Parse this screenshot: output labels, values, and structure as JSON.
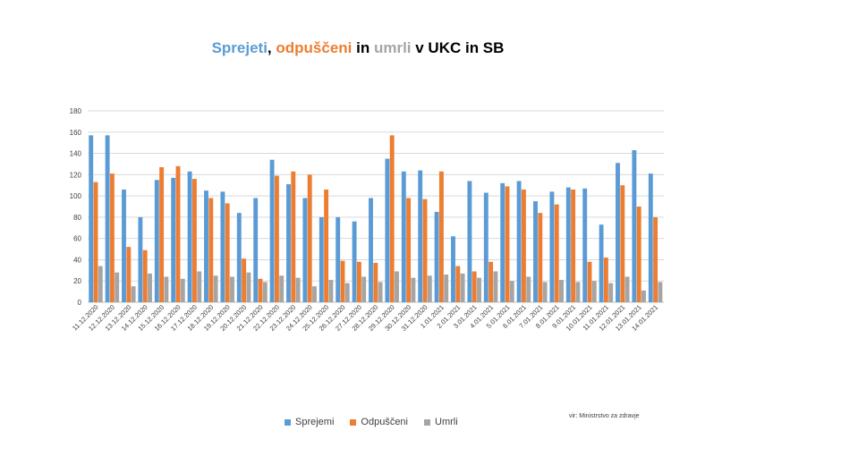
{
  "title": {
    "part1": "Sprejeti",
    "sep1": ", ",
    "part2": "odpuščeni",
    "sep2": " in ",
    "part3": "umrli",
    "part4": " v UKC in SB"
  },
  "colors": {
    "Sprejemi": "#5b9bd5",
    "Odpuščeni": "#ed7d31",
    "Umrli": "#a5a5a5",
    "title_dark": "#000000",
    "grid": "#d9d9d9",
    "axis_text": "#404040"
  },
  "source": "vir: Ministrstvo za zdravje",
  "legend": {
    "s1": "Sprejemi",
    "s2": "Odpuščeni",
    "s3": "Umrli"
  },
  "chart_data": {
    "type": "bar",
    "title": "Sprejeti, odpuščeni in umrli v UKC in SB",
    "ylim": [
      0,
      180
    ],
    "yticks": [
      0,
      20,
      40,
      60,
      80,
      100,
      120,
      140,
      160,
      180
    ],
    "grid": true,
    "legend_position": "bottom",
    "categories": [
      "11.12.2020",
      "12.12.2020",
      "13.12.2020",
      "14.12.2020",
      "15.12.2020",
      "16.12.2020",
      "17.12.2020",
      "18.12.2020",
      "19.12.2020",
      "20.12.2020",
      "21.12.2020",
      "22.12.2020",
      "23.12.2020",
      "24.12.2020",
      "25.12.2020",
      "26.12.2020",
      "27.12.2020",
      "28.12.2020",
      "29.12.2020",
      "30.12.2020",
      "31.12.2020",
      "1.01.2021",
      "2.01.2021",
      "3.01.2021",
      "4.01.2021",
      "5.01.2021",
      "6.01.2021",
      "7.01.2021",
      "8.01.2021",
      "9.01.2021",
      "10.01.2021",
      "11.01.2021",
      "12.01.2021",
      "13.01.2021",
      "14.01.2021"
    ],
    "series": [
      {
        "name": "Sprejemi",
        "values": [
          157,
          157,
          106,
          80,
          115,
          117,
          123,
          105,
          104,
          84,
          98,
          134,
          111,
          98,
          80,
          80,
          76,
          98,
          135,
          123,
          124,
          85,
          62,
          114,
          103,
          112,
          114,
          95,
          104,
          108,
          107,
          73,
          131,
          143,
          121
        ]
      },
      {
        "name": "Odpuščeni",
        "values": [
          113,
          121,
          52,
          49,
          127,
          128,
          116,
          98,
          93,
          41,
          22,
          119,
          123,
          120,
          106,
          39,
          38,
          37,
          157,
          98,
          97,
          123,
          34,
          29,
          38,
          109,
          106,
          84,
          92,
          106,
          38,
          42,
          110,
          90,
          80
        ]
      },
      {
        "name": "Umrli",
        "values": [
          34,
          28,
          15,
          27,
          24,
          22,
          29,
          25,
          24,
          28,
          19,
          25,
          23,
          15,
          21,
          18,
          24,
          19,
          29,
          23,
          25,
          26,
          27,
          23,
          29,
          20,
          24,
          19,
          21,
          19,
          20,
          18,
          24,
          11,
          19
        ]
      }
    ]
  }
}
